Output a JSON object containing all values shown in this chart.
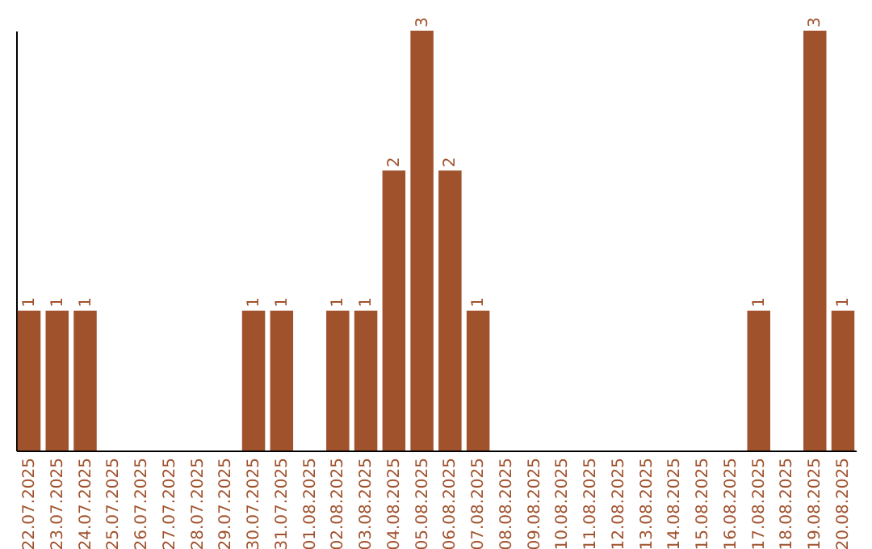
{
  "chart_data": {
    "type": "bar",
    "categories": [
      "22.07.2025",
      "23.07.2025",
      "24.07.2025",
      "25.07.2025",
      "26.07.2025",
      "27.07.2025",
      "28.07.2025",
      "29.07.2025",
      "30.07.2025",
      "31.07.2025",
      "01.08.2025",
      "02.08.2025",
      "03.08.2025",
      "04.08.2025",
      "05.08.2025",
      "06.08.2025",
      "07.08.2025",
      "08.08.2025",
      "09.08.2025",
      "10.08.2025",
      "11.08.2025",
      "12.08.2025",
      "13.08.2025",
      "14.08.2025",
      "15.08.2025",
      "16.08.2025",
      "17.08.2025",
      "18.08.2025",
      "19.08.2025",
      "20.08.2025"
    ],
    "values": [
      1,
      1,
      1,
      0,
      0,
      0,
      0,
      0,
      1,
      1,
      0,
      1,
      1,
      2,
      3,
      2,
      1,
      0,
      0,
      0,
      0,
      0,
      0,
      0,
      0,
      0,
      1,
      0,
      3,
      1
    ],
    "value_labels": [
      "1",
      "1",
      "1",
      null,
      null,
      null,
      null,
      null,
      "1",
      "1",
      null,
      "1",
      "1",
      "2",
      "3",
      "2",
      "1",
      null,
      null,
      null,
      null,
      null,
      null,
      null,
      null,
      null,
      "1",
      null,
      "3",
      "1"
    ],
    "color": "#a0522d",
    "ylim": [
      0,
      3
    ],
    "tick_labels": "x"
  }
}
